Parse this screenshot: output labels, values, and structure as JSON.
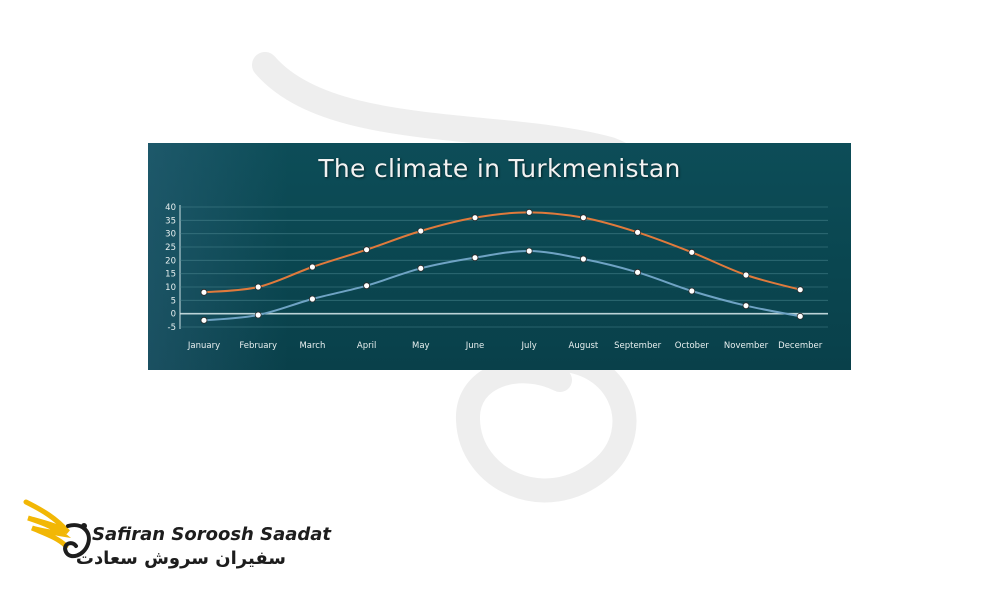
{
  "chart_data": {
    "type": "line",
    "title": "The climate in Turkmenistan",
    "categories": [
      "January",
      "February",
      "March",
      "April",
      "May",
      "June",
      "July",
      "August",
      "September",
      "October",
      "November",
      "December"
    ],
    "series": [
      {
        "color": "#e07a3c",
        "values": [
          8,
          10,
          17.5,
          24,
          31,
          36,
          38,
          36,
          30.5,
          23,
          14.5,
          9
        ]
      },
      {
        "color": "#6fa3c4",
        "values": [
          -2.5,
          -0.5,
          5.5,
          10.5,
          17,
          21,
          23.5,
          20.5,
          15.5,
          8.5,
          3,
          -1
        ]
      }
    ],
    "yticks": [
      -5,
      0,
      5,
      10,
      15,
      20,
      25,
      30,
      35,
      40
    ],
    "ylim": [
      -5,
      40
    ],
    "grid": true,
    "legend": "none"
  },
  "colors": {
    "panel_background": "#0b4650",
    "grid": "#4f8a93",
    "zero_line": "#cfe3e6",
    "marker_fill": "#ffffff"
  },
  "logo": {
    "text_latin": "Safiran Soroosh Saadat",
    "text_persian": "سفیران سروش سعادت",
    "icon": "golden-bird-logo-icon",
    "accent": "#f2b705"
  }
}
